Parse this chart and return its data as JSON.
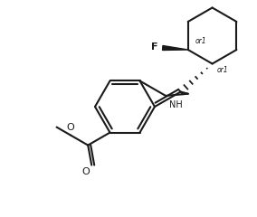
{
  "bg_color": "#ffffff",
  "line_color": "#1a1a1a",
  "line_width": 1.5,
  "F_label": "F",
  "or1_label": "or1",
  "NH_label": "NH",
  "O_label": "O",
  "methoxy_label": "O"
}
